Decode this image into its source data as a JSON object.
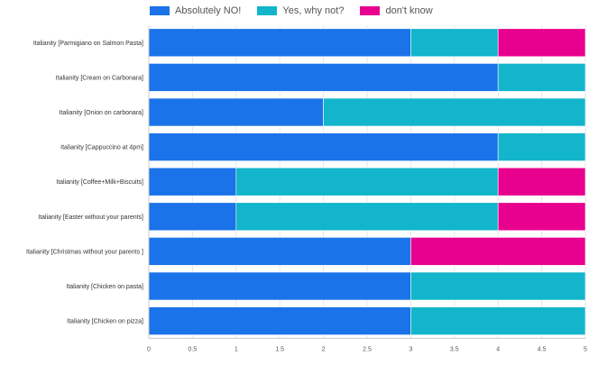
{
  "chart_data": {
    "type": "bar",
    "orientation": "horizontal",
    "stacked": true,
    "categories": [
      "Italianity [Parmigiano on Salmon Pasta]",
      "Italianity [Cream on Carbonara]",
      "Italianity [Onion on carbonara]",
      "Italianity [Cappuccino at 4pm]",
      "Italianity [Coffee+Milk+Biscuits]",
      "Italianity [Easter without your parents]",
      "Italianity [Christmas without your parents ]",
      "Italianity [Chicken on pasta]",
      "Italianity [Chicken on pizza]"
    ],
    "series": [
      {
        "name": "Absolutely NO!",
        "color": "#1a73e8",
        "values": [
          3,
          4,
          2,
          4,
          1,
          1,
          3,
          3,
          3
        ]
      },
      {
        "name": "Yes, why not?",
        "color": "#12b5cb",
        "values": [
          1,
          1,
          3,
          1,
          3,
          3,
          0,
          2,
          2
        ]
      },
      {
        "name": "don't know",
        "color": "#e8008e",
        "values": [
          1,
          0,
          0,
          0,
          1,
          1,
          2,
          0,
          0
        ]
      }
    ],
    "xlim": [
      0,
      5
    ],
    "xticks": [
      "0",
      "0.5",
      "1",
      "1.5",
      "2",
      "2.5",
      "3",
      "3.5",
      "4",
      "4.5",
      "5"
    ],
    "legend_position": "top",
    "grid": true
  }
}
